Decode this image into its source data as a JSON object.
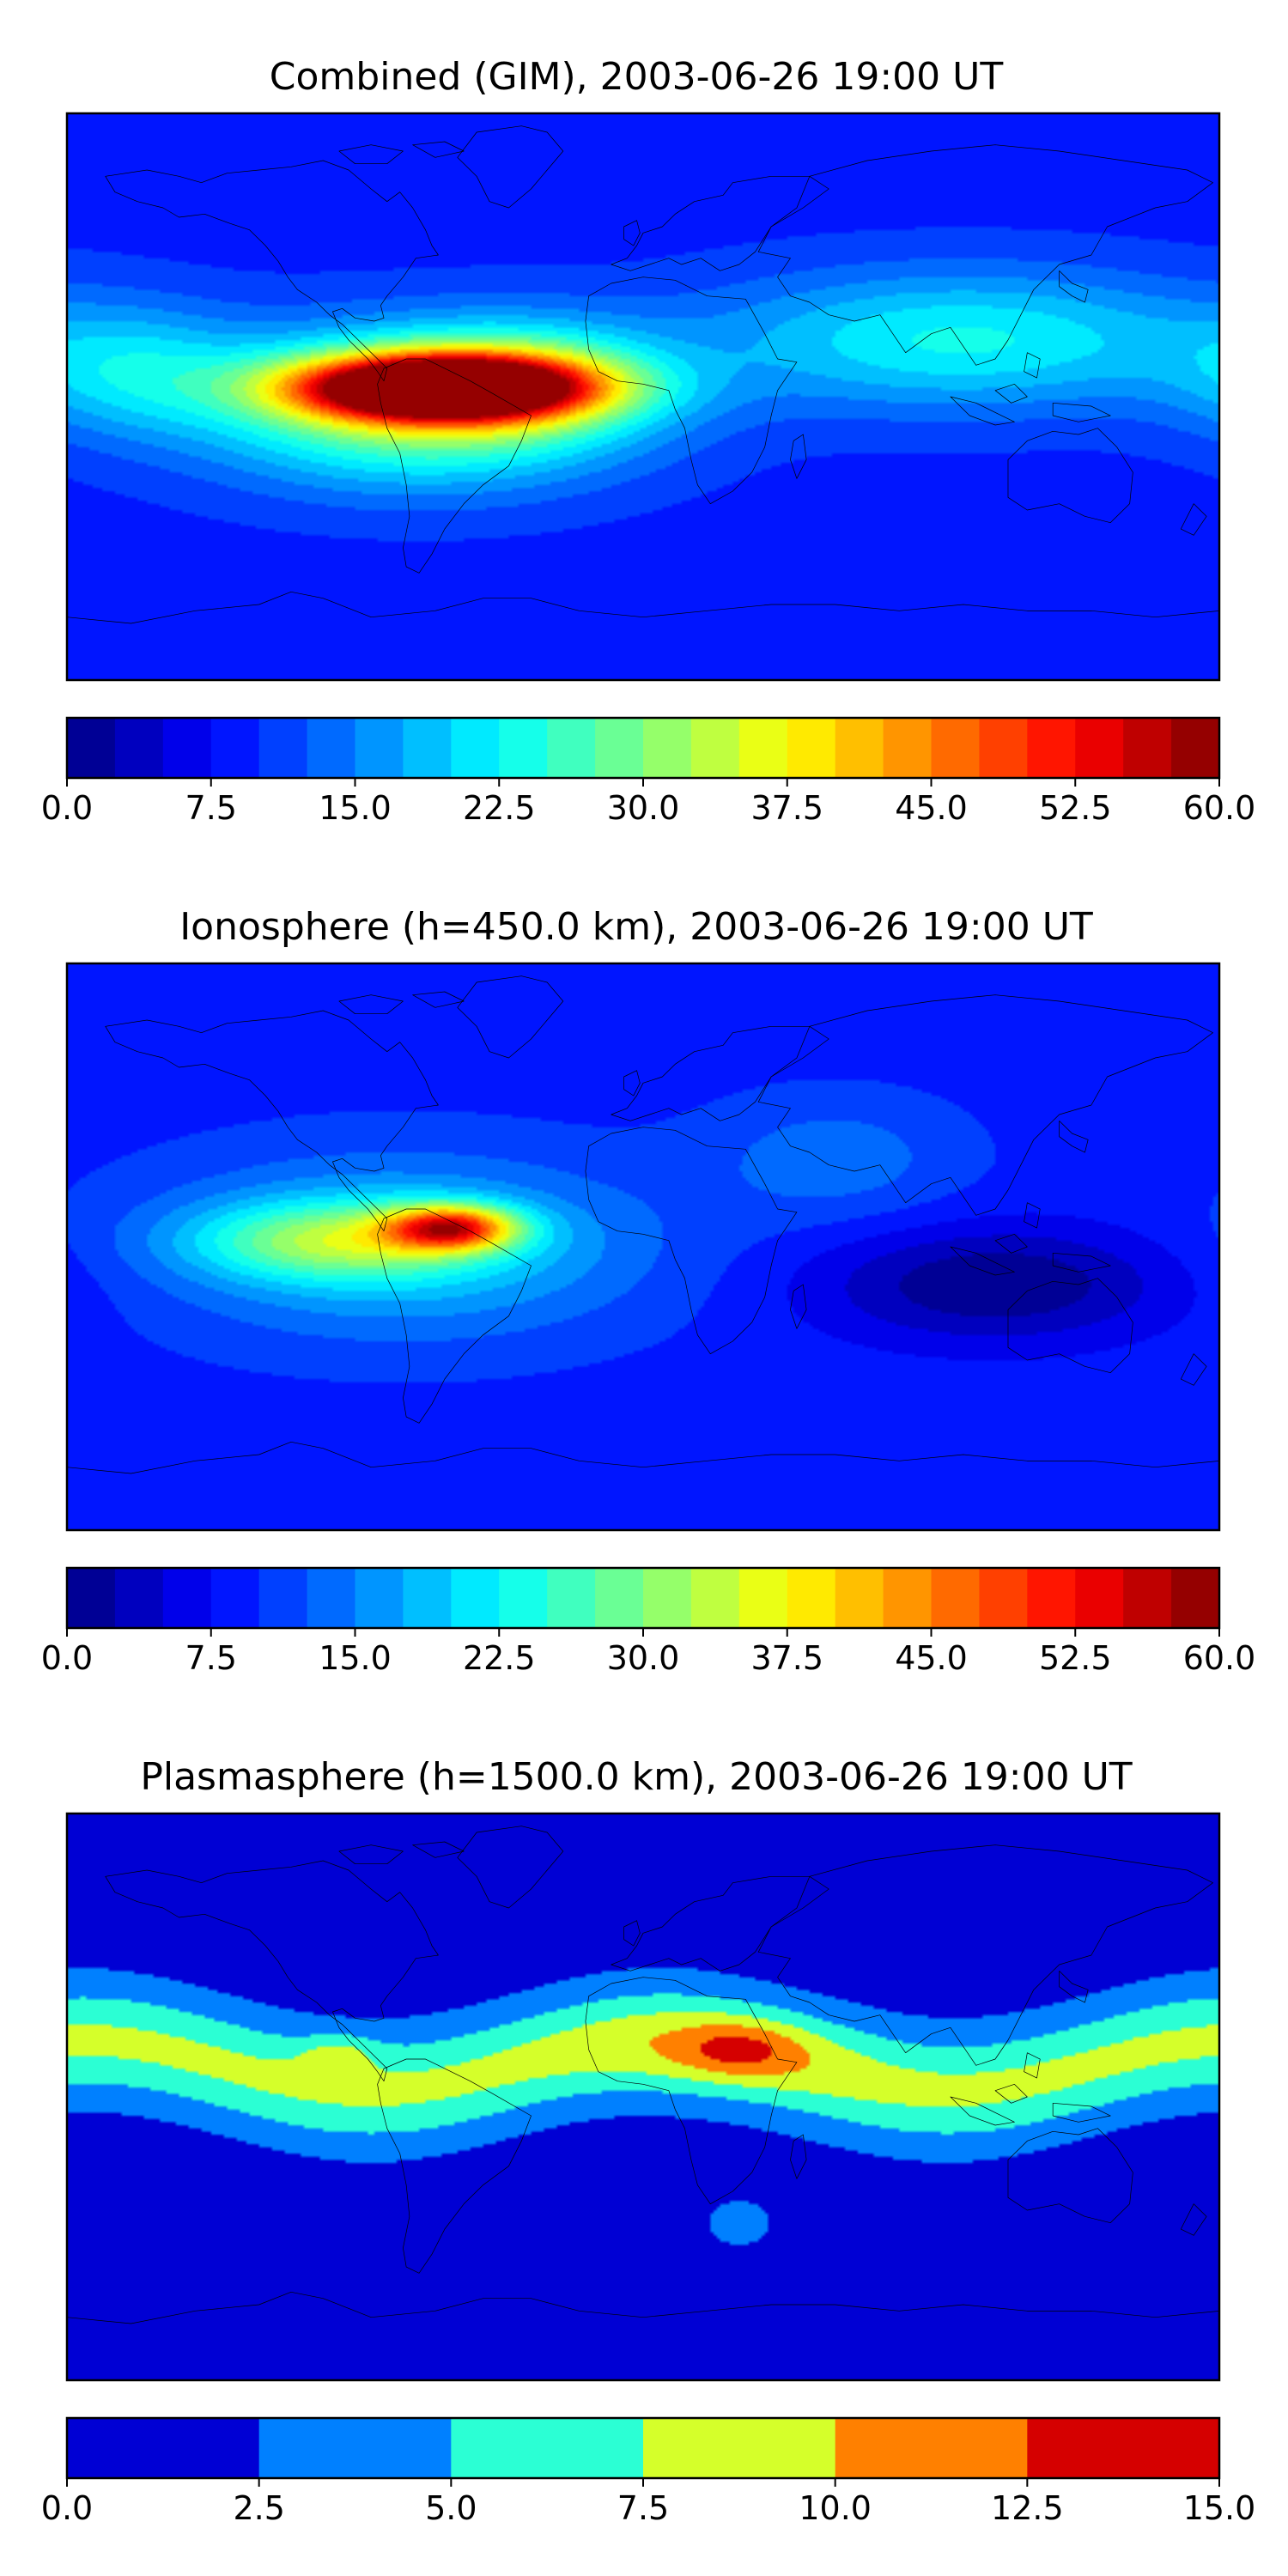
{
  "chart_data": [
    {
      "type": "heatmap",
      "title": "Combined (GIM), 2003-06-26 19:00 UT",
      "colormap": "jet",
      "levels": [
        0,
        2.5,
        5,
        7.5,
        10,
        12.5,
        15,
        17.5,
        20,
        22.5,
        25,
        27.5,
        30,
        32.5,
        35,
        37.5,
        40,
        42.5,
        45,
        47.5,
        50,
        52.5,
        55,
        57.5,
        60
      ],
      "colorbar_ticks": [
        "0.0",
        "7.5",
        "15.0",
        "22.5",
        "30.0",
        "37.5",
        "45.0",
        "52.5",
        "60.0"
      ],
      "vmin": 0,
      "vmax": 60,
      "features": [
        {
          "lon": -63,
          "lat": 3,
          "value": 57,
          "sx": 45,
          "sy": 10
        },
        {
          "lon": -70,
          "lat": -3,
          "value": 24,
          "sx": 65,
          "sy": 24
        },
        {
          "lon": -35,
          "lat": 6,
          "value": 10,
          "sx": 40,
          "sy": 18
        },
        {
          "lon": 100,
          "lat": 18,
          "value": 14,
          "sx": 80,
          "sy": 22
        },
        {
          "lon": -160,
          "lat": 8,
          "value": 9,
          "sx": 35,
          "sy": 20
        }
      ],
      "background": 9
    },
    {
      "type": "heatmap",
      "title": "Ionosphere  (h=450.0 km), 2003-06-26 19:00 UT",
      "colormap": "jet",
      "levels": [
        0,
        2.5,
        5,
        7.5,
        10,
        12.5,
        15,
        17.5,
        20,
        22.5,
        25,
        27.5,
        30,
        32.5,
        35,
        37.5,
        40,
        42.5,
        45,
        47.5,
        50,
        52.5,
        55,
        57.5,
        60
      ],
      "colorbar_ticks": [
        "0.0",
        "7.5",
        "15.0",
        "22.5",
        "30.0",
        "37.5",
        "45.0",
        "52.5",
        "60.0"
      ],
      "vmin": 0,
      "vmax": 60,
      "features": [
        {
          "lon": -60,
          "lat": 6,
          "value": 32,
          "sx": 20,
          "sy": 7
        },
        {
          "lon": -95,
          "lat": 2,
          "value": 16,
          "sx": 45,
          "sy": 12
        },
        {
          "lon": -75,
          "lat": 0,
          "value": 11,
          "sx": 75,
          "sy": 28
        },
        {
          "lon": 110,
          "lat": -12,
          "value": -9,
          "sx": 55,
          "sy": 18
        },
        {
          "lon": 60,
          "lat": 28,
          "value": 5,
          "sx": 40,
          "sy": 20
        }
      ],
      "background": 9
    },
    {
      "type": "heatmap",
      "title": "Plasmasphere (h=1500.0 km), 2003-06-26 19:00 UT",
      "colormap": "jet",
      "levels": [
        0,
        2.5,
        5,
        7.5,
        10,
        12.5,
        15
      ],
      "colorbar_ticks": [
        "0.0",
        "2.5",
        "5.0",
        "7.5",
        "10.0",
        "12.5",
        "15.0"
      ],
      "vmin": 0,
      "vmax": 15,
      "features": [
        {
          "lon": 30,
          "lat": 15,
          "value": 3.4,
          "sx": 18,
          "sy": 8
        },
        {
          "lon": 25,
          "lat": 14,
          "value": 2.5,
          "sx": 40,
          "sy": 14
        },
        {
          "lon": -95,
          "lat": 14,
          "value": 3.0,
          "sx": 12,
          "sy": 6
        },
        {
          "lon": 30,
          "lat": -40,
          "value": 1.5,
          "sx": 25,
          "sy": 18
        }
      ],
      "band": {
        "value": 8,
        "lat_center": 10,
        "lat_width": 28,
        "wave_amp": 8
      },
      "background": 1.2
    }
  ]
}
